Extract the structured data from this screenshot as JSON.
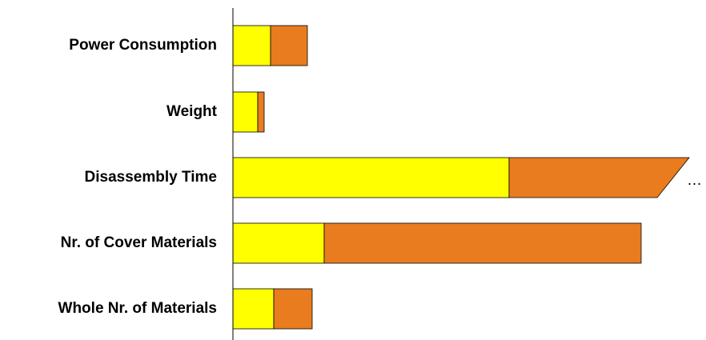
{
  "chart_data": {
    "type": "bar",
    "orientation": "horizontal",
    "stacked": true,
    "categories": [
      "Power Consumption",
      "Weight",
      "Disassembly Time",
      "Nr. of Cover Materials",
      "Whole Nr. of Materials"
    ],
    "series": [
      {
        "values": [
          47,
          31,
          345,
          114,
          51
        ],
        "color": "#ffff00"
      },
      {
        "values": [
          46,
          8,
          225,
          396,
          48
        ],
        "color": "#e87c1e"
      }
    ],
    "xlim": [
      0,
      580
    ],
    "truncated": [
      false,
      false,
      true,
      false,
      false
    ],
    "truncation_marker": "…",
    "grid": false,
    "legend": "none"
  }
}
